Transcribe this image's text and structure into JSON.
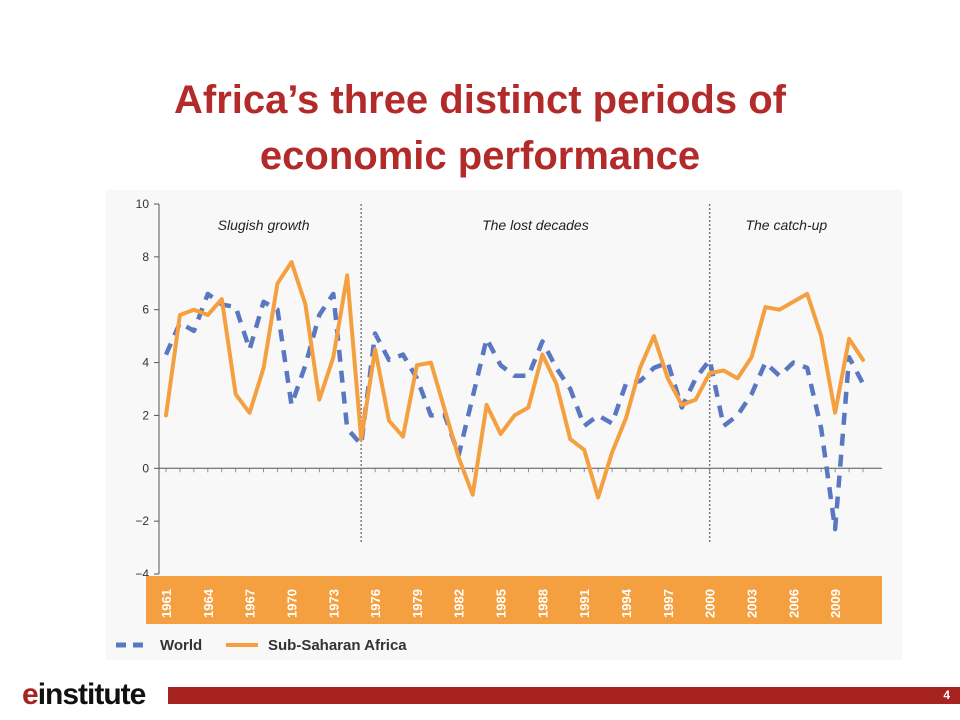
{
  "slide": {
    "title_line1": "Africa’s three distinct periods of",
    "title_line2": "economic performance",
    "page_number": "4"
  },
  "logo": {
    "e": "e",
    "rest": "institute"
  },
  "colors": {
    "title": "#b22a2a",
    "footer_bar": "#a7231f",
    "world": "#5a77c2",
    "africa": "#f4a040",
    "axis_band": "#f0a43a"
  },
  "chart_data": {
    "type": "line",
    "x_start": 1961,
    "x_end": 2011,
    "ylim": [
      -4,
      10
    ],
    "yticks": [
      10,
      8,
      6,
      4,
      2,
      0,
      -2,
      -4
    ],
    "xticks": [
      1961,
      1964,
      1967,
      1970,
      1973,
      1976,
      1979,
      1982,
      1985,
      1988,
      1991,
      1994,
      1997,
      2000,
      2003,
      2006,
      2009
    ],
    "periods": [
      {
        "label": "Slugish growth",
        "start": 1961,
        "end": 1975
      },
      {
        "label": "The lost decades",
        "start": 1975,
        "end": 2000
      },
      {
        "label": "The catch-up",
        "start": 2000,
        "end": 2011
      }
    ],
    "dividers": [
      1975,
      2000
    ],
    "series": [
      {
        "name": "World",
        "style": "dashed",
        "color": "#5a77c2",
        "values": [
          4.3,
          5.5,
          5.2,
          6.6,
          6.2,
          6.1,
          4.5,
          6.3,
          6.0,
          2.4,
          3.9,
          5.8,
          6.6,
          1.5,
          0.9,
          5.1,
          4.1,
          4.3,
          3.4,
          2.0,
          2.0,
          0.5,
          2.7,
          4.9,
          3.9,
          3.5,
          3.5,
          4.8,
          3.8,
          3.0,
          1.6,
          2.0,
          1.7,
          3.2,
          3.3,
          3.8,
          4.0,
          2.3,
          3.4,
          4.1,
          1.6,
          2.0,
          2.8,
          4.0,
          3.5,
          4.0,
          3.8,
          1.5,
          -2.3,
          4.2,
          3.2
        ]
      },
      {
        "name": "Sub-Saharan Africa",
        "style": "solid",
        "color": "#f4a040",
        "values": [
          2.0,
          5.8,
          6.0,
          5.8,
          6.4,
          2.8,
          2.1,
          3.8,
          7.0,
          7.8,
          6.2,
          2.6,
          4.2,
          7.3,
          1.1,
          4.5,
          1.8,
          1.2,
          3.9,
          4.0,
          2.2,
          0.4,
          -1.0,
          2.4,
          1.3,
          2.0,
          2.3,
          4.3,
          3.2,
          1.1,
          0.7,
          -1.1,
          0.6,
          1.9,
          3.8,
          5.0,
          3.4,
          2.4,
          2.6,
          3.6,
          3.7,
          3.4,
          4.2,
          6.1,
          6.0,
          6.3,
          6.6,
          5.0,
          2.1,
          4.9,
          4.1
        ]
      }
    ]
  }
}
